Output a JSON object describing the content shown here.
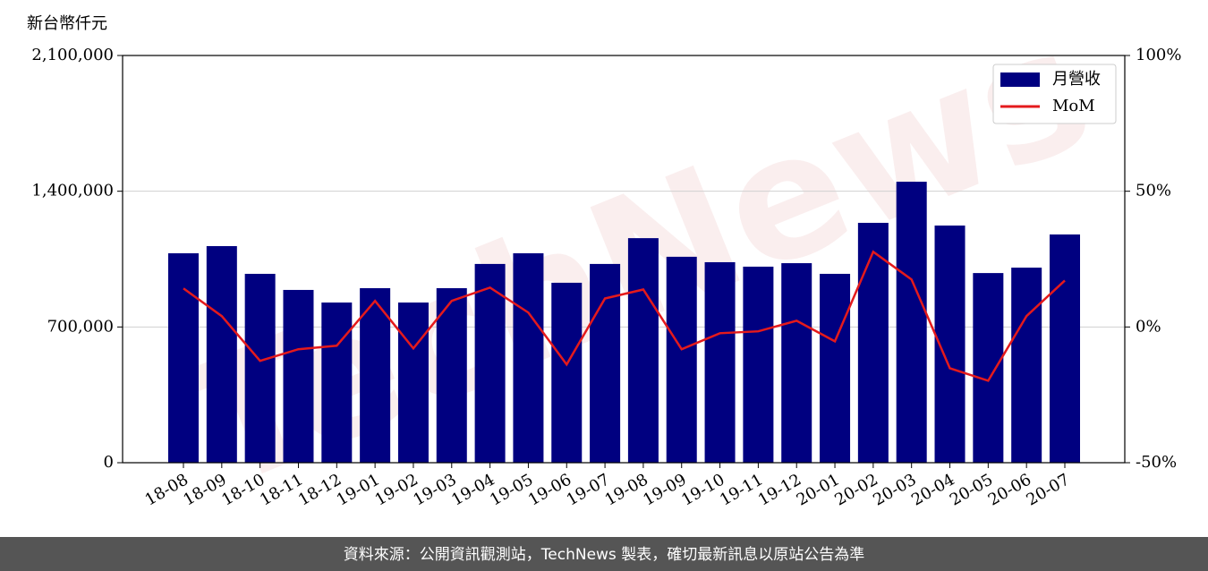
{
  "chart_data": {
    "type": "bar-line",
    "y_label": "新台幣仟元",
    "watermark": "TechNews",
    "footer": "資料來源：公開資訊觀測站，TechNews 製表，確切最新訊息以原站公告為準",
    "categories": [
      "18-08",
      "18-09",
      "18-10",
      "18-11",
      "18-12",
      "19-01",
      "19-02",
      "19-03",
      "19-04",
      "19-05",
      "19-06",
      "19-07",
      "19-08",
      "19-09",
      "19-10",
      "19-11",
      "19-12",
      "20-01",
      "20-02",
      "20-03",
      "20-04",
      "20-05",
      "20-06",
      "20-07"
    ],
    "series": [
      {
        "name": "月營收",
        "type": "bar",
        "color": "#000080",
        "values": [
          1080000,
          1117000,
          974000,
          891000,
          826000,
          900000,
          826000,
          900000,
          1025000,
          1080000,
          928000,
          1025000,
          1158000,
          1062000,
          1034000,
          1011000,
          1029000,
          974000,
          1237000,
          1449000,
          1223000,
          978000,
          1006000,
          1177000
        ]
      },
      {
        "name": "MoM",
        "type": "line",
        "color": "#e41a1c",
        "axis": "y2",
        "values": [
          14.2,
          4.0,
          -12.5,
          -8.2,
          -6.9,
          9.6,
          -7.9,
          9.6,
          14.5,
          5.3,
          -13.8,
          10.5,
          13.8,
          -8.2,
          -2.3,
          -1.6,
          2.3,
          -5.3,
          27.7,
          17.5,
          -15.2,
          -19.8,
          4.0,
          17.1
        ]
      }
    ],
    "ylim": [
      0,
      2100000
    ],
    "yticks": [
      0,
      {
        "value": 700000,
        "label": "700,000"
      },
      {
        "value": 1400000,
        "label": "1,400,000"
      },
      {
        "value": 2100000,
        "label": "2,100,000"
      }
    ],
    "y2lim": [
      -50,
      100
    ],
    "y2ticks": [
      {
        "value": -50,
        "label": "-50%"
      },
      {
        "value": 0,
        "label": "0%"
      },
      {
        "value": 50,
        "label": "50%"
      },
      {
        "value": 100,
        "label": "100%"
      }
    ],
    "grid": true,
    "legend": "upper right"
  }
}
